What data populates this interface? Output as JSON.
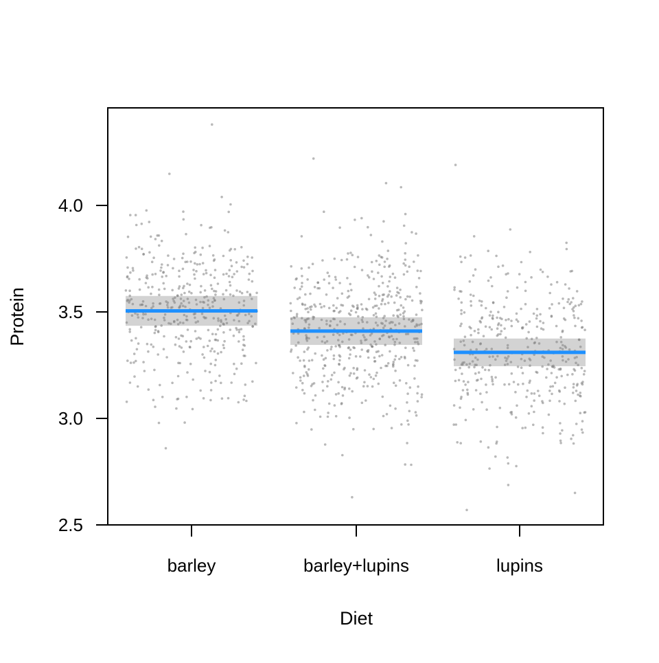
{
  "chart_data": {
    "type": "scatter",
    "title": "",
    "xlabel": "Diet",
    "ylabel": "Protein",
    "ylim": [
      2.5,
      4.45
    ],
    "yticks": [
      "2.5",
      "3.0",
      "3.5",
      "4.0"
    ],
    "categories": [
      "barley",
      "barley+lupins",
      "lupins"
    ],
    "grid": false,
    "estimates": [
      {
        "category": "barley",
        "mean": 3.505,
        "lower": 3.435,
        "upper": 3.575
      },
      {
        "category": "barley+lupins",
        "mean": 3.41,
        "lower": 3.345,
        "upper": 3.475
      },
      {
        "category": "lupins",
        "mean": 3.31,
        "lower": 3.245,
        "upper": 3.375
      }
    ],
    "observations": [
      {
        "category": "barley",
        "count": 425,
        "center": 3.505,
        "sd": 0.2,
        "min": 2.86,
        "max": 4.38
      },
      {
        "category": "barley+lupins",
        "count": 519,
        "center": 3.41,
        "sd": 0.22,
        "min": 2.63,
        "max": 4.22
      },
      {
        "category": "lupins",
        "count": 393,
        "center": 3.31,
        "sd": 0.22,
        "min": 2.57,
        "max": 4.19
      }
    ],
    "colors": {
      "estimate_line": "#1e90ff",
      "band": "#d3d3d3",
      "points": "#808080",
      "axis": "#000000"
    }
  }
}
